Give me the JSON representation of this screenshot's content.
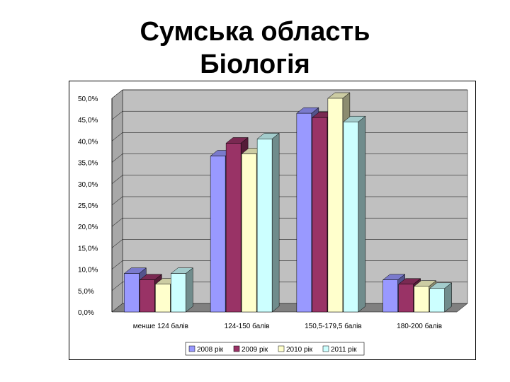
{
  "title": {
    "line1": "Сумська область",
    "line2": "Біологія"
  },
  "colors": {
    "series": [
      "#9999FF",
      "#993366",
      "#FFFFCC",
      "#CCFFFF"
    ],
    "wall": "#C0C0C0",
    "floor": "#808080"
  },
  "chart_data": {
    "type": "bar",
    "categories": [
      "менше 124 балів",
      "124-150 балів",
      "150,5-179,5 балів",
      "180-200 балів"
    ],
    "series": [
      {
        "name": "2008 рік",
        "values": [
          9.0,
          36.5,
          46.5,
          7.5
        ]
      },
      {
        "name": "2009 рік",
        "values": [
          7.5,
          39.5,
          45.5,
          6.5
        ]
      },
      {
        "name": "2010 рік",
        "values": [
          6.5,
          37.0,
          50.0,
          6.0
        ]
      },
      {
        "name": "2011 рік",
        "values": [
          9.0,
          40.5,
          44.5,
          5.5
        ]
      }
    ],
    "yticks": [
      "0,0%",
      "5,0%",
      "10,0%",
      "15,0%",
      "20,0%",
      "25,0%",
      "30,0%",
      "35,0%",
      "40,0%",
      "45,0%",
      "50,0%"
    ],
    "ylim": [
      0,
      50
    ],
    "legend_position": "bottom",
    "three_d": true
  }
}
